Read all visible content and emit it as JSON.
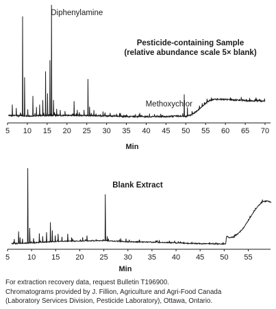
{
  "chart_data": [
    {
      "type": "line",
      "title": "Pesticide-containing Sample",
      "subtitle": "(relative abundance scale 5× blank)",
      "xlabel": "Min",
      "ylabel": "",
      "xlim": [
        5,
        70
      ],
      "xticks": [
        5,
        10,
        15,
        20,
        25,
        30,
        35,
        40,
        45,
        50,
        55,
        60,
        65,
        70
      ],
      "annotations": [
        {
          "text": "Diphenylamine",
          "x": 16.1
        },
        {
          "text": "Methoxychlor",
          "x": 49.6
        }
      ],
      "baseline": [
        [
          5.2,
          0.03
        ],
        [
          10,
          0.025
        ],
        [
          15,
          0.03
        ],
        [
          20,
          0.03
        ],
        [
          25,
          0.03
        ],
        [
          30,
          0.025
        ],
        [
          35,
          0.02
        ],
        [
          40,
          0.02
        ],
        [
          45,
          0.02
        ],
        [
          48,
          0.025
        ],
        [
          50,
          0.02
        ],
        [
          51,
          0.03
        ],
        [
          52,
          0.05
        ],
        [
          53,
          0.075
        ],
        [
          54,
          0.11
        ],
        [
          55,
          0.14
        ],
        [
          56,
          0.165
        ],
        [
          57,
          0.175
        ],
        [
          60,
          0.175
        ],
        [
          65,
          0.165
        ],
        [
          70,
          0.16
        ]
      ],
      "peaks": [
        [
          6.2,
          0.1
        ],
        [
          7.2,
          0.07
        ],
        [
          8.8,
          0.9
        ],
        [
          9.3,
          0.35
        ],
        [
          10.1,
          0.06
        ],
        [
          11.4,
          0.18
        ],
        [
          12.3,
          0.08
        ],
        [
          13.1,
          0.1
        ],
        [
          13.9,
          0.14
        ],
        [
          14.6,
          0.4
        ],
        [
          15.1,
          0.2
        ],
        [
          15.7,
          0.5
        ],
        [
          16.1,
          1.0
        ],
        [
          16.6,
          0.14
        ],
        [
          17.4,
          0.06
        ],
        [
          18.3,
          0.05
        ],
        [
          19.5,
          0.04
        ],
        [
          21.8,
          0.13
        ],
        [
          22.6,
          0.05
        ],
        [
          24.3,
          0.05
        ],
        [
          25.3,
          0.33
        ],
        [
          25.7,
          0.08
        ],
        [
          26.8,
          0.05
        ],
        [
          29.1,
          0.04
        ],
        [
          33.5,
          0.03
        ],
        [
          49.6,
          0.2
        ],
        [
          50.4,
          0.08
        ]
      ]
    },
    {
      "type": "line",
      "title": "Blank Extract",
      "xlabel": "Min",
      "ylabel": "",
      "xlim": [
        5,
        60
      ],
      "xticks": [
        5,
        10,
        15,
        20,
        25,
        30,
        35,
        40,
        45,
        50,
        55
      ],
      "baseline": [
        [
          5.8,
          0.02
        ],
        [
          10,
          0.03
        ],
        [
          15,
          0.05
        ],
        [
          20,
          0.055
        ],
        [
          25,
          0.06
        ],
        [
          30,
          0.045
        ],
        [
          35,
          0.04
        ],
        [
          40,
          0.03
        ],
        [
          45,
          0.02
        ],
        [
          50.3,
          0.015
        ],
        [
          50.5,
          0.12
        ],
        [
          51,
          0.1
        ],
        [
          52,
          0.11
        ],
        [
          53,
          0.16
        ],
        [
          54,
          0.23
        ],
        [
          55,
          0.33
        ],
        [
          56,
          0.43
        ],
        [
          57,
          0.52
        ],
        [
          58,
          0.58
        ],
        [
          59,
          0.59
        ],
        [
          59.8,
          0.57
        ]
      ],
      "peaks": [
        [
          6.4,
          0.06
        ],
        [
          7.3,
          0.16
        ],
        [
          7.6,
          0.08
        ],
        [
          8.1,
          0.06
        ],
        [
          9.2,
          1.0
        ],
        [
          9.6,
          0.2
        ],
        [
          10.4,
          0.06
        ],
        [
          11.6,
          0.12
        ],
        [
          12.3,
          0.08
        ],
        [
          13.1,
          0.13
        ],
        [
          13.9,
          0.26
        ],
        [
          14.3,
          0.15
        ],
        [
          14.9,
          0.08
        ],
        [
          15.5,
          0.1
        ],
        [
          16.3,
          0.06
        ],
        [
          17.5,
          0.1
        ],
        [
          18.3,
          0.05
        ],
        [
          20.6,
          0.05
        ],
        [
          21.5,
          0.07
        ],
        [
          25.3,
          0.62
        ],
        [
          25.7,
          0.06
        ],
        [
          28.5,
          0.04
        ],
        [
          29.6,
          0.04
        ],
        [
          32.4,
          0.03
        ]
      ]
    }
  ],
  "footnotes": [
    "For extraction recovery data, request Bulletin T196900.",
    "Chromatograms provided by J. Fillion, Agriculture and Agri-Food Canada",
    "(Laboratory Services Division, Pesticide Laboratory), Ottawa, Ontario."
  ]
}
